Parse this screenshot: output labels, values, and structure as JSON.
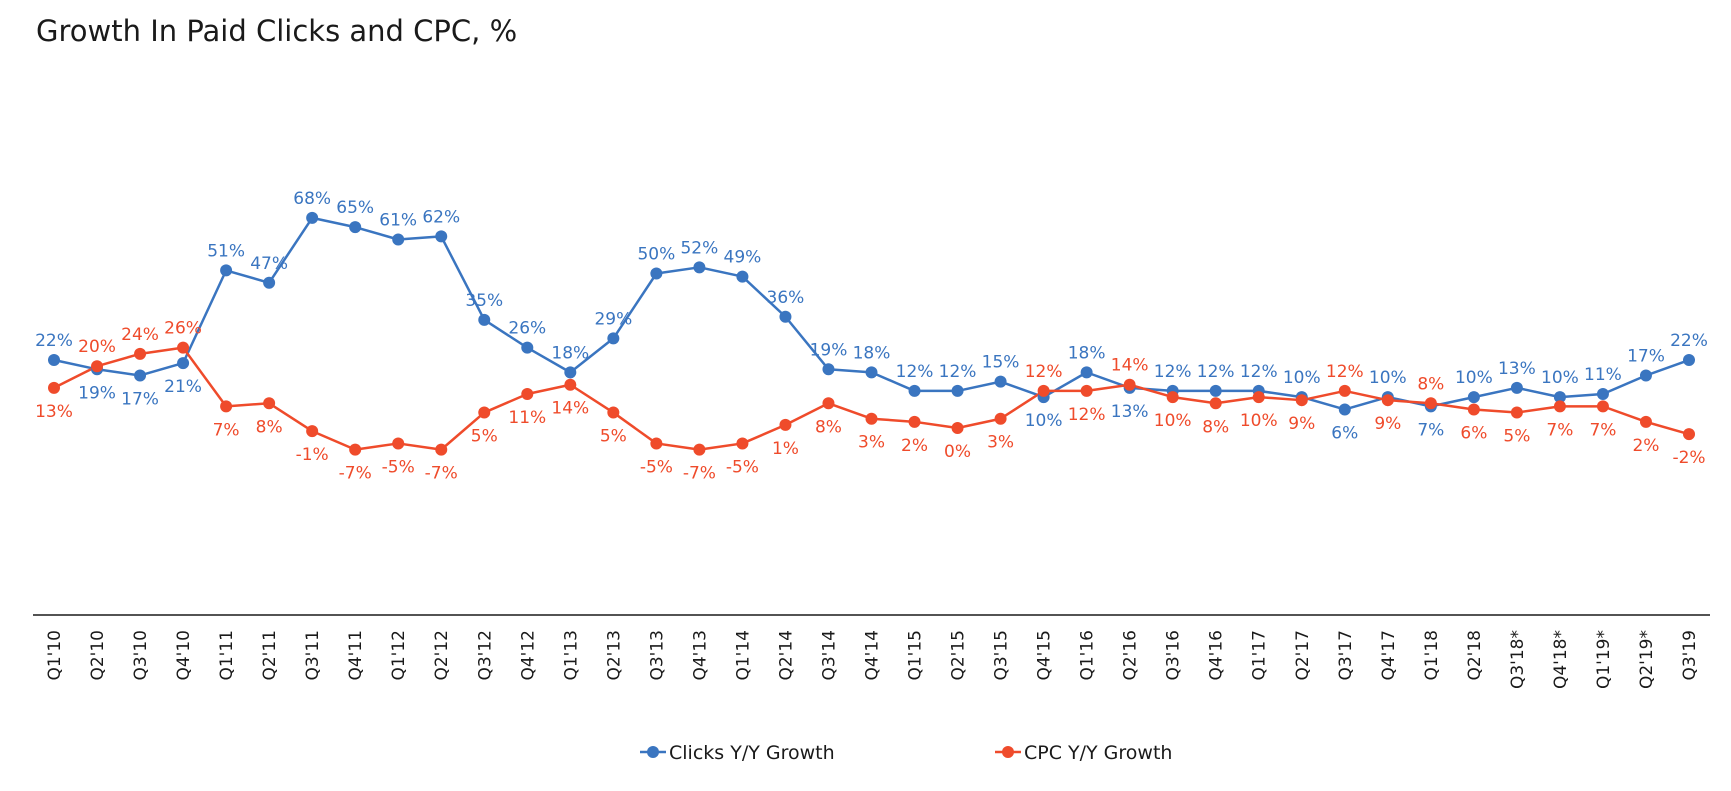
{
  "chart_data": {
    "type": "line",
    "title": "Growth In Paid Clicks and CPC, %",
    "xlabel": "",
    "ylabel": "",
    "categories": [
      "Q1'10",
      "Q2'10",
      "Q3'10",
      "Q4'10",
      "Q1'11",
      "Q2'11",
      "Q3'11",
      "Q4'11",
      "Q1'12",
      "Q2'12",
      "Q3'12",
      "Q4'12",
      "Q1'13",
      "Q2'13",
      "Q3'13",
      "Q4'13",
      "Q1'14",
      "Q2'14",
      "Q3'14",
      "Q4'14",
      "Q1'15",
      "Q2'15",
      "Q3'15",
      "Q4'15",
      "Q1'16",
      "Q2'16",
      "Q3'16",
      "Q4'16",
      "Q1'17",
      "Q2'17",
      "Q3'17",
      "Q4'17",
      "Q1'18",
      "Q2'18",
      "Q3'18*",
      "Q4'18*",
      "Q1'19*",
      "Q2'19*",
      "Q3'19"
    ],
    "series": [
      {
        "name": "Clicks Y/Y Growth",
        "color": "#3a75c0",
        "values": [
          22,
          19,
          17,
          21,
          51,
          47,
          68,
          65,
          61,
          62,
          35,
          26,
          18,
          29,
          50,
          52,
          49,
          36,
          19,
          18,
          12,
          12,
          15,
          10,
          18,
          13,
          12,
          12,
          12,
          10,
          6,
          10,
          7,
          10,
          13,
          10,
          11,
          17,
          22
        ],
        "labels": [
          "22%",
          "19%",
          "17%",
          "21%",
          "51%",
          "47%",
          "68%",
          "65%",
          "61%",
          "62%",
          "35%",
          "26%",
          "18%",
          "29%",
          "50%",
          "52%",
          "49%",
          "36%",
          "19%",
          "18%",
          "12%",
          "12%",
          "15%",
          "10%",
          "18%",
          "13%",
          "12%",
          "12%",
          "12%",
          "10%",
          "6%",
          "10%",
          "7%",
          "10%",
          "13%",
          "10%",
          "11%",
          "17%",
          "22%"
        ]
      },
      {
        "name": "CPC Y/Y Growth",
        "color": "#ef4b2b",
        "values": [
          13,
          20,
          24,
          26,
          7,
          8,
          -1,
          -7,
          -5,
          -7,
          5,
          11,
          14,
          5,
          -5,
          -7,
          -5,
          1,
          8,
          3,
          2,
          0,
          3,
          12,
          12,
          14,
          10,
          8,
          10,
          9,
          12,
          9,
          8,
          6,
          5,
          7,
          7,
          2,
          -2
        ],
        "labels": [
          "13%",
          "20%",
          "24%",
          "26%",
          "7%",
          "8%",
          "-1%",
          "-7%",
          "-5%",
          "-7%",
          "5%",
          "11%",
          "14%",
          "5%",
          "-5%",
          "-7%",
          "-5%",
          "1%",
          "8%",
          "3%",
          "2%",
          "0%",
          "3%",
          "12%",
          "12%",
          "14%",
          "10%",
          "8%",
          "10%",
          "9%",
          "12%",
          "9%",
          "8%",
          "6%",
          "5%",
          "7%",
          "7%",
          "2%",
          "-2%"
        ]
      }
    ],
    "grid": false,
    "legend": "bottom-center"
  }
}
